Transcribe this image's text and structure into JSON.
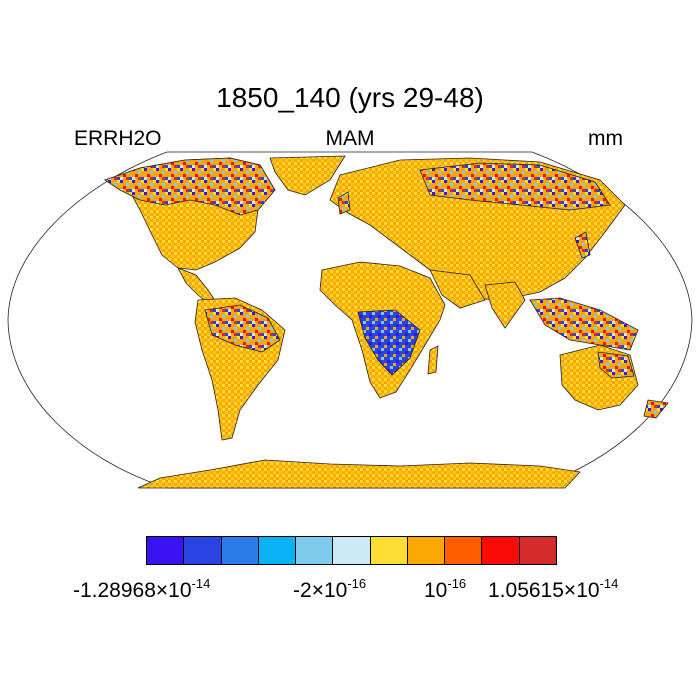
{
  "title": "1850_140 (yrs 29-48)",
  "left_label": "ERRH2O",
  "center_label": "MAM",
  "right_label": "mm",
  "projection": "robinson",
  "colorbar": {
    "colors": [
      "#3b12f1",
      "#2a44e4",
      "#2b7ce9",
      "#08b2f5",
      "#7ecbee",
      "#cce9f7",
      "#fedd35",
      "#fea602",
      "#ff5e00",
      "#fa0b06",
      "#d32a2a"
    ],
    "ticks": [
      {
        "mantissa": "-1.28968",
        "times": "×",
        "base": "10",
        "exponent": "-14"
      },
      {
        "mantissa": "-2",
        "times": "×",
        "base": "10",
        "exponent": "-16"
      },
      {
        "mantissa": "",
        "times": "",
        "base": "10",
        "exponent": "-16"
      },
      {
        "mantissa": "1.05615",
        "times": "×",
        "base": "10",
        "exponent": "-14"
      }
    ]
  }
}
